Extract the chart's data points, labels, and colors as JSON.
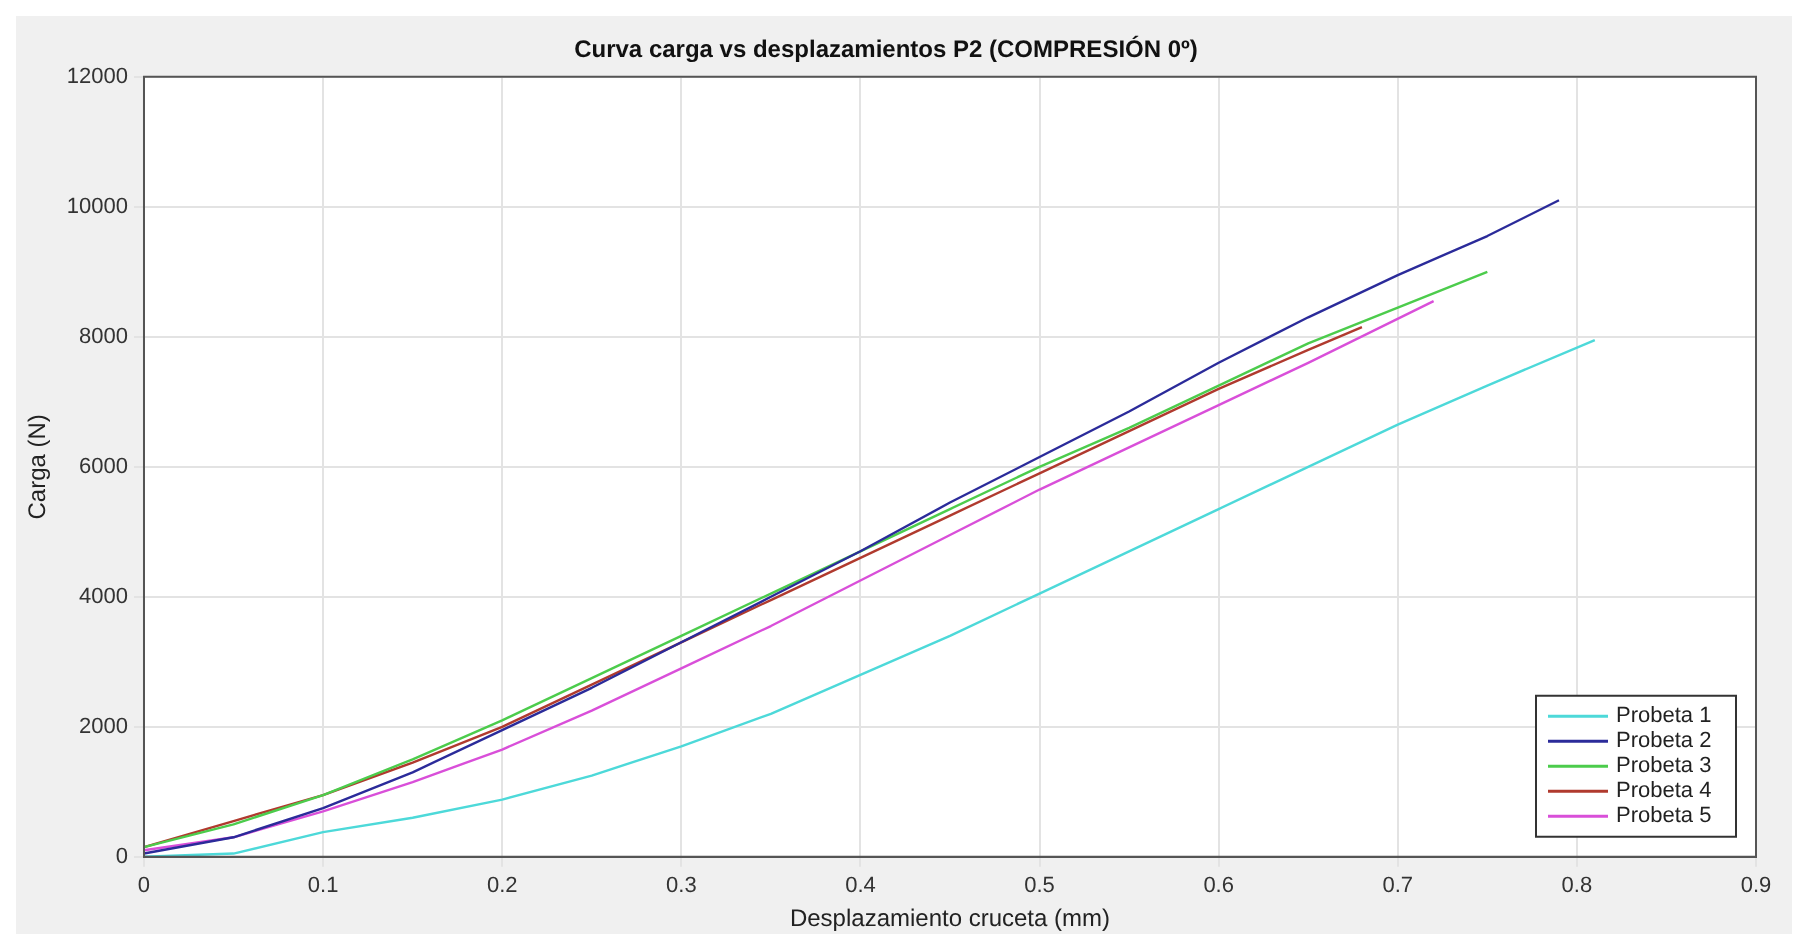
{
  "chart_data": {
    "type": "line",
    "title": "Curva carga vs desplazamientos P2 (COMPRESIÓN 0º)",
    "xlabel": "Desplazamiento cruceta (mm)",
    "ylabel": "Carga (N)",
    "xlim": [
      0,
      0.9
    ],
    "xticks": [
      0,
      0.1,
      0.2,
      0.3,
      0.4,
      0.5,
      0.6,
      0.7,
      0.8,
      0.9
    ],
    "ylim": [
      0,
      12000
    ],
    "yticks": [
      0,
      2000,
      4000,
      6000,
      8000,
      10000,
      12000
    ],
    "grid": true,
    "legend": "bottom right",
    "marker": "none",
    "line_style": "solid",
    "series": [
      {
        "name": "Probeta 1",
        "color": "#4dd9d9",
        "x": [
          0,
          0.05,
          0.1,
          0.15,
          0.2,
          0.25,
          0.3,
          0.35,
          0.4,
          0.45,
          0.5,
          0.55,
          0.6,
          0.65,
          0.7,
          0.75,
          0.81
        ],
        "values": [
          0,
          50,
          380,
          600,
          880,
          1250,
          1700,
          2200,
          2800,
          3400,
          4050,
          4700,
          5350,
          6000,
          6650,
          7250,
          7950
        ]
      },
      {
        "name": "Probeta 2",
        "color": "#2b2b9a",
        "x": [
          0,
          0.05,
          0.1,
          0.15,
          0.2,
          0.25,
          0.3,
          0.35,
          0.4,
          0.45,
          0.5,
          0.55,
          0.6,
          0.65,
          0.7,
          0.75,
          0.79
        ],
        "values": [
          50,
          300,
          750,
          1300,
          1950,
          2600,
          3300,
          4000,
          4700,
          5450,
          6150,
          6850,
          7600,
          8300,
          8950,
          9550,
          10100
        ]
      },
      {
        "name": "Probeta 3",
        "color": "#4ccc4c",
        "x": [
          0,
          0.05,
          0.1,
          0.15,
          0.2,
          0.25,
          0.3,
          0.35,
          0.4,
          0.45,
          0.5,
          0.55,
          0.6,
          0.65,
          0.7,
          0.75
        ],
        "values": [
          150,
          500,
          950,
          1500,
          2100,
          2750,
          3400,
          4050,
          4700,
          5350,
          6000,
          6600,
          7250,
          7900,
          8450,
          9000
        ]
      },
      {
        "name": "Probeta 4",
        "color": "#b03a2e",
        "x": [
          0,
          0.05,
          0.1,
          0.15,
          0.2,
          0.25,
          0.3,
          0.35,
          0.4,
          0.45,
          0.5,
          0.55,
          0.6,
          0.65,
          0.68
        ],
        "values": [
          150,
          550,
          950,
          1450,
          2000,
          2650,
          3300,
          3950,
          4600,
          5250,
          5900,
          6550,
          7200,
          7800,
          8150
        ]
      },
      {
        "name": "Probeta 5",
        "color": "#d94fd9",
        "x": [
          0,
          0.05,
          0.1,
          0.15,
          0.2,
          0.25,
          0.3,
          0.35,
          0.4,
          0.45,
          0.5,
          0.55,
          0.6,
          0.65,
          0.72
        ],
        "values": [
          100,
          300,
          700,
          1150,
          1650,
          2250,
          2900,
          3550,
          4250,
          4950,
          5650,
          6300,
          6950,
          7600,
          8550
        ]
      }
    ]
  }
}
